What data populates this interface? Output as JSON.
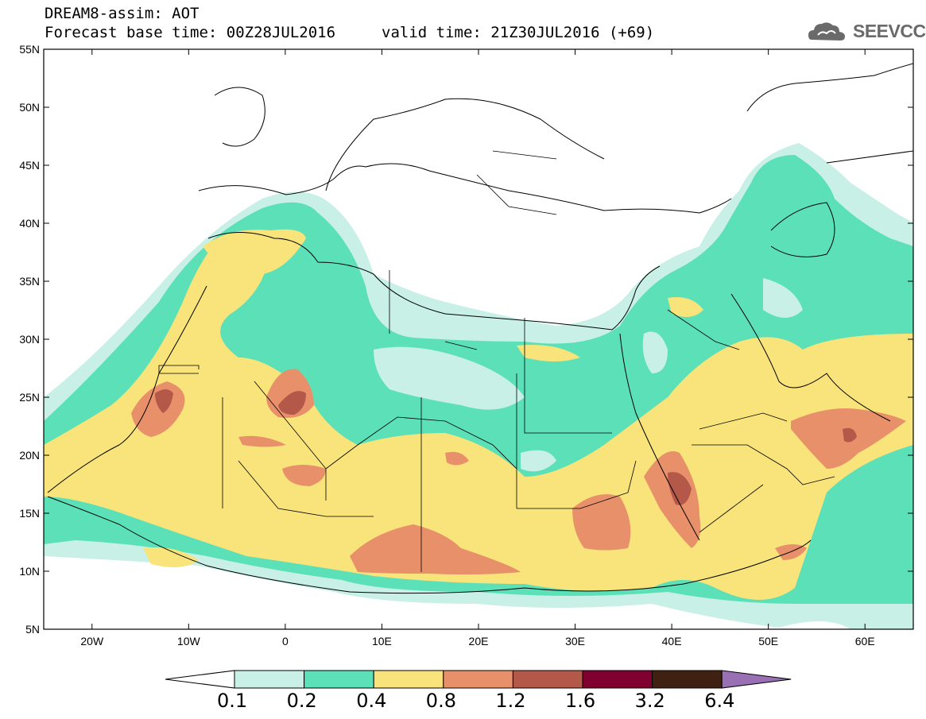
{
  "header": {
    "title": "DREAM8-assim: AOT",
    "base_time": "Forecast base time: 00Z28JUL2016",
    "valid_time": "valid time: 21Z30JUL2016 (+69)"
  },
  "logo": {
    "text": "SEEVCCC",
    "icon": "cloud-icon"
  },
  "map": {
    "variable": "AOT",
    "lat_ticks": [
      "55N",
      "50N",
      "45N",
      "40N",
      "35N",
      "30N",
      "25N",
      "20N",
      "15N",
      "10N",
      "5N"
    ],
    "lon_ticks": [
      "20W",
      "10W",
      "0",
      "10E",
      "20E",
      "30E",
      "40E",
      "50E",
      "60E"
    ],
    "lon_range": [
      -25,
      65
    ],
    "lat_range": [
      5,
      55
    ]
  },
  "colorbar": {
    "levels": [
      "0.1",
      "0.2",
      "0.4",
      "0.8",
      "1.2",
      "1.6",
      "3.2",
      "6.4"
    ],
    "colors": [
      "#ffffff",
      "#c8f0e6",
      "#5ce0b8",
      "#f8e47a",
      "#e8906a",
      "#b4584a",
      "#800030",
      "#402010",
      "#9a70b4"
    ]
  }
}
